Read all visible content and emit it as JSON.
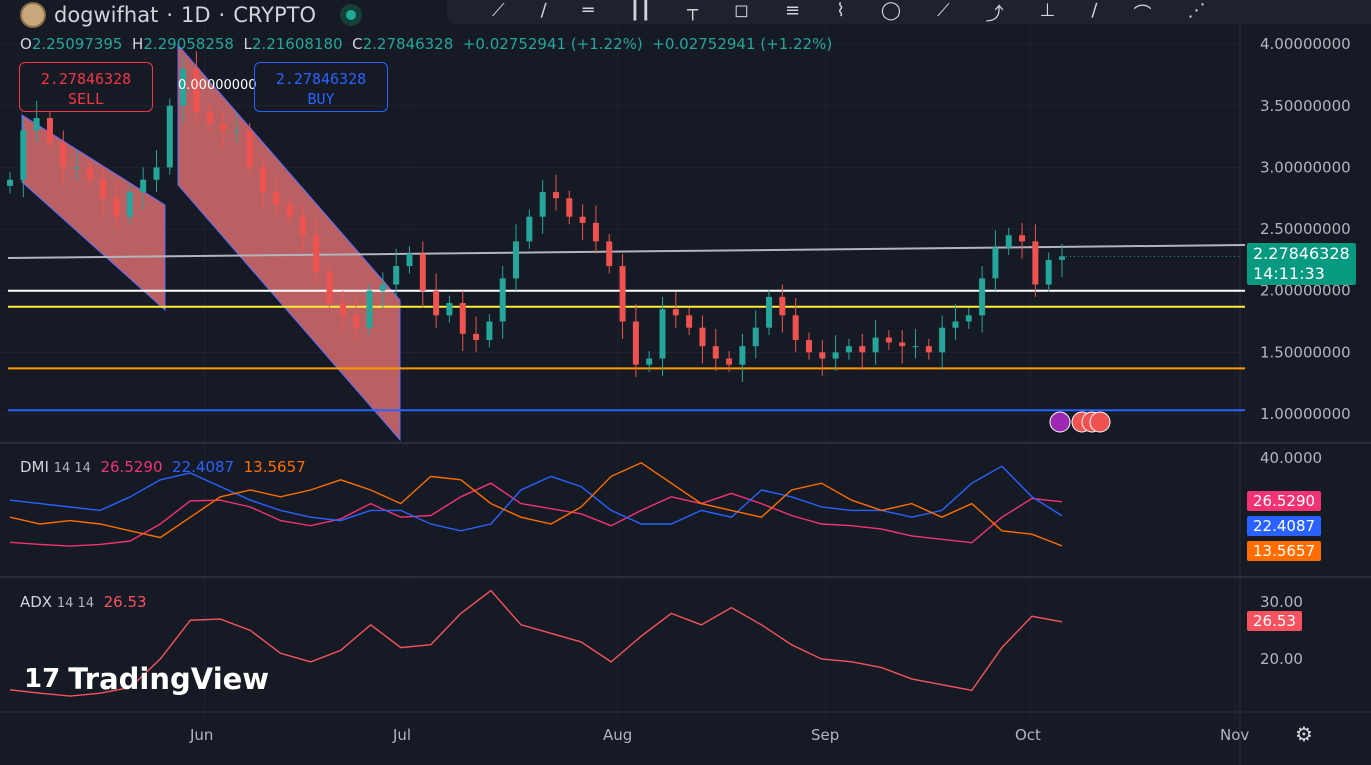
{
  "header": {
    "symbol": "dogwifhat",
    "interval": "1D",
    "exchange": "CRYPTO",
    "sep": "·"
  },
  "ohlc": {
    "o_label": "O",
    "o": "2.25097395",
    "h_label": "H",
    "h": "2.29058258",
    "l_label": "L",
    "l": "2.21608180",
    "c_label": "C",
    "c": "2.27846328",
    "change": "+0.02752941 (+1.22%)",
    "change2": "+0.02752941 (+1.22%)"
  },
  "trade": {
    "sell_price": "2.27846328",
    "sell_label": "SELL",
    "buy_price": "2.27846328",
    "buy_label": "BUY",
    "spread": "0.00000000"
  },
  "price_tag": {
    "price": "2.27846328",
    "countdown": "14:11:33"
  },
  "dmi": {
    "name": "DMI",
    "params": "14 14",
    "adx": "26.5290",
    "plus_di": "22.4087",
    "minus_di": "13.5657"
  },
  "adx": {
    "name": "ADX",
    "params": "14 14",
    "value": "26.53"
  },
  "brand": "TradingView",
  "colors": {
    "up": "#26a69a",
    "down": "#ef5350",
    "adx": "#f7525f",
    "dmi_adx": "#f23373",
    "plus_di": "#2962ff",
    "minus_di": "#ff6d00",
    "bg": "#161a25"
  },
  "chart_data": [
    {
      "type": "candlestick",
      "title": "dogwifhat · 1D · CRYPTO",
      "interval_days": 2,
      "start": "May 5",
      "ylim": [
        0.85,
        4.1
      ],
      "y_ticks": [
        "4.00000000",
        "3.50000000",
        "3.00000000",
        "2.50000000",
        "2.00000000",
        "1.50000000",
        "1.00000000"
      ],
      "y_tick_values": [
        4,
        3.5,
        3,
        2.5,
        2,
        1.5,
        1
      ],
      "x_ticks": [
        "Jun",
        "Jul",
        "Aug",
        "Sep",
        "Oct",
        "Nov"
      ],
      "closes": [
        2.9,
        3.3,
        3.4,
        3.2,
        3.0,
        3.0,
        2.9,
        2.75,
        2.6,
        2.8,
        2.9,
        3.0,
        3.5,
        3.8,
        3.45,
        3.35,
        3.3,
        3.3,
        3.0,
        2.8,
        2.7,
        2.6,
        2.45,
        2.15,
        1.9,
        1.8,
        1.7,
        2.0,
        2.05,
        2.2,
        2.3,
        2.0,
        1.8,
        1.9,
        1.65,
        1.6,
        1.75,
        2.1,
        2.4,
        2.6,
        2.8,
        2.75,
        2.6,
        2.55,
        2.4,
        2.2,
        1.75,
        1.4,
        1.45,
        1.85,
        1.8,
        1.7,
        1.55,
        1.45,
        1.4,
        1.55,
        1.7,
        1.95,
        1.8,
        1.6,
        1.5,
        1.45,
        1.5,
        1.55,
        1.5,
        1.62,
        1.58,
        1.55,
        1.55,
        1.5,
        1.7,
        1.75,
        1.8,
        2.1,
        2.35,
        2.45,
        2.4,
        2.05,
        2.25,
        2.27846328
      ],
      "horizontal_levels": [
        {
          "price": 2.0,
          "color": "#ffffff"
        },
        {
          "price": 1.87,
          "color": "#ffeb3b"
        },
        {
          "price": 1.37,
          "color": "#ff9800"
        },
        {
          "price": 1.03,
          "color": "#2962ff"
        }
      ],
      "trend_line": {
        "from": 2.3,
        "to": 2.4,
        "color": "#b2b5be"
      }
    },
    {
      "type": "line",
      "title": "DMI 14 14",
      "ylim": [
        10,
        42
      ],
      "y_ticks": [
        "40.0000"
      ],
      "y_tick_values": [
        40
      ],
      "series": [
        {
          "name": "ADX",
          "color": "#f23373",
          "values": [
            14.6,
            14,
            13.5,
            14,
            15,
            20,
            26.8,
            27,
            25,
            21,
            19.5,
            21.5,
            26,
            22,
            22.5,
            28,
            32,
            26,
            24.5,
            23,
            19.5,
            24,
            28,
            26,
            29,
            26,
            22.5,
            20,
            19.5,
            18.5,
            16.5,
            15.5,
            14.5,
            22,
            27.5,
            26.53
          ]
        },
        {
          "name": "+DI",
          "color": "#2962ff",
          "values": [
            27,
            26,
            25,
            24,
            28,
            33,
            35,
            31,
            27,
            24,
            22,
            21,
            24,
            24,
            20,
            18,
            20,
            30,
            34,
            31,
            24,
            20,
            20,
            24,
            22,
            30,
            28,
            25,
            24,
            24,
            22,
            24,
            32,
            37,
            28,
            22.41
          ]
        },
        {
          "name": "-DI",
          "color": "#ff6d00",
          "values": [
            22,
            20,
            21,
            20,
            18,
            16,
            22,
            28,
            30,
            28,
            30,
            33,
            30,
            26,
            34,
            33,
            26,
            22,
            20,
            25,
            34,
            38,
            32,
            26,
            24,
            22,
            30,
            32,
            27,
            24,
            26,
            22,
            26,
            18,
            17,
            13.57
          ]
        }
      ]
    },
    {
      "type": "line",
      "title": "ADX 14 14",
      "ylim": [
        10,
        34
      ],
      "y_ticks": [
        "30.00",
        "20.00"
      ],
      "y_tick_values": [
        30,
        20
      ],
      "series": [
        {
          "name": "ADX",
          "color": "#f7525f",
          "values": [
            14.6,
            14,
            13.5,
            14,
            15,
            20,
            26.8,
            27,
            25,
            21,
            19.5,
            21.5,
            26,
            22,
            22.5,
            28,
            32,
            26,
            24.5,
            23,
            19.5,
            24,
            28,
            26,
            29,
            26,
            22.5,
            20,
            19.5,
            18.5,
            16.5,
            15.5,
            14.5,
            22,
            27.5,
            26.53
          ]
        }
      ]
    }
  ]
}
